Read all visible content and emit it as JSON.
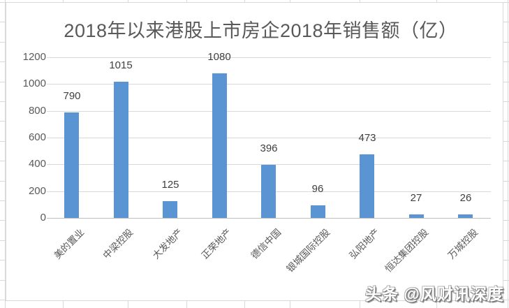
{
  "chart_data": {
    "type": "bar",
    "title": "2018年以来港股上市房企2018年销售额（亿）",
    "categories": [
      "美的置业",
      "中梁控股",
      "大发地产",
      "正荣地产",
      "德信中国",
      "银城国际控股",
      "弘阳地产",
      "恒达集团控股",
      "万城控股"
    ],
    "values": [
      790,
      1015,
      125,
      1080,
      396,
      96,
      473,
      27,
      26
    ],
    "yticks": [
      0,
      200,
      400,
      600,
      800,
      1000,
      1200
    ],
    "ylim": [
      0,
      1200
    ],
    "xlabel": "",
    "ylabel": "",
    "grid": true,
    "legend": "none",
    "data_labels": "outside-end"
  },
  "watermark": {
    "text": "头条 @风财讯深度"
  },
  "colors": {
    "bar": "#5B94D2",
    "title": "#595959",
    "axis_label": "#595959",
    "value_label": "#3F3F3F",
    "category_label": "#595959",
    "gridline": "#D9D9D9",
    "axis_line": "#BFBFBF",
    "sheet_grid": "#D8D8D8",
    "chart_border": "#D9D9D9",
    "watermark_fill": "#FFFFFF"
  }
}
